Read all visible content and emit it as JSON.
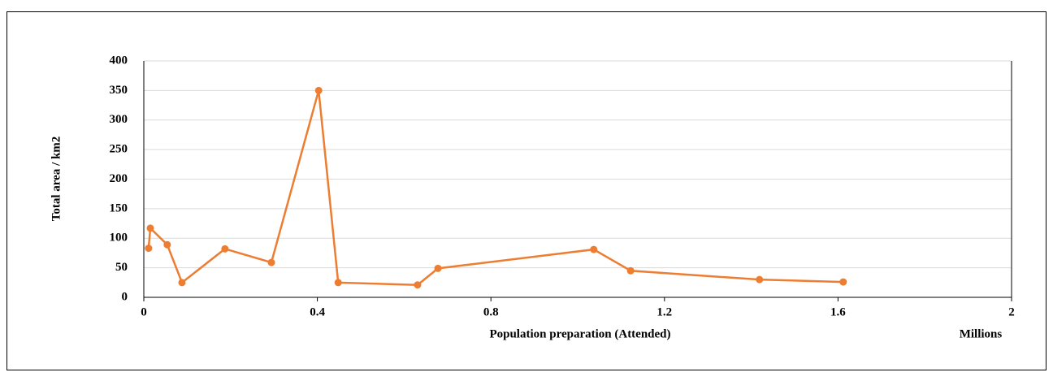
{
  "chart_data": {
    "type": "line",
    "x_label": "Population  preparation  (Attended)",
    "x_unit": "Millions",
    "y_label": "Total area / km2",
    "series": [
      {
        "color": "#ed7d31",
        "x": [
          0.011,
          0.015,
          0.054,
          0.088,
          0.187,
          0.294,
          0.403,
          0.448,
          0.631,
          0.678,
          1.037,
          1.122,
          1.419,
          1.612
        ],
        "values": [
          83,
          117,
          89,
          25,
          82,
          59,
          350,
          25,
          21,
          49,
          81,
          45,
          30,
          26
        ]
      }
    ],
    "xlim": [
      0,
      2
    ],
    "xticks": [
      0,
      0.4,
      0.8,
      1.2,
      1.6,
      2
    ],
    "ylim": [
      0,
      400
    ],
    "yticks": [
      0,
      50,
      100,
      150,
      200,
      250,
      300,
      350,
      400
    ],
    "grid": true
  }
}
